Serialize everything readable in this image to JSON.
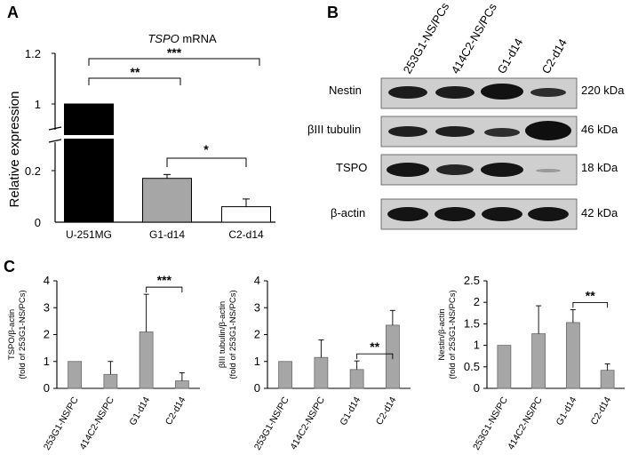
{
  "panels": {
    "A": "A",
    "B": "B",
    "C": "C"
  },
  "panel_a": {
    "title_gene": "TSPO",
    "title_rest": " mRNA",
    "ylabel": "Relative expression",
    "yticks_upper": [
      "1.2",
      "1"
    ],
    "yticks_lower": [
      "0.2",
      "0"
    ],
    "sig": [
      "**",
      "***",
      "*"
    ]
  },
  "panel_b": {
    "lanes": [
      "253G1-NS/PCs",
      "414C2-NS/PCs",
      "G1-d14",
      "C2-d14"
    ],
    "rows": [
      {
        "protein": "Nestin",
        "size": "220 kDa"
      },
      {
        "protein": "βIII tubulin",
        "size": "46 kDa"
      },
      {
        "protein": "TSPO",
        "size": "18 kDa"
      },
      {
        "protein": "β-actin",
        "size": "42 kDa"
      }
    ]
  },
  "chart_data": [
    {
      "type": "bar",
      "categories": [
        "U-251MG",
        "G1-d14",
        "C2-d14"
      ],
      "values": [
        1.0,
        0.17,
        0.06
      ],
      "errors": [
        0,
        0.015,
        0.03
      ],
      "colors": [
        "#000000",
        "#a6a6a6",
        "#ffffff"
      ],
      "title": "TSPO mRNA",
      "ylabel": "Relative expression",
      "y_axis_break": [
        0.25,
        0.85
      ],
      "ylim": [
        0,
        1.2
      ]
    },
    {
      "type": "bar",
      "categories": [
        "253G1-NS/PC",
        "414C2-NS/PC",
        "G1-d14",
        "C2-d14"
      ],
      "values": [
        1.0,
        0.52,
        2.1,
        0.28
      ],
      "errors": [
        0,
        0.48,
        1.4,
        0.3
      ],
      "ylabel_line1": "TSPO/β-actin",
      "ylabel_line2": "(fold of 253G1-NS/PCs)",
      "yticks": [
        "0",
        "1",
        "2",
        "3",
        "4"
      ],
      "ylim": [
        0,
        4
      ],
      "sig": "***"
    },
    {
      "type": "bar",
      "categories": [
        "253G1-NS/PC",
        "414C2-NS/PC",
        "G1-d14",
        "C2-d14"
      ],
      "values": [
        1.0,
        1.15,
        0.7,
        2.35
      ],
      "errors": [
        0,
        0.65,
        0.32,
        0.55
      ],
      "ylabel_line1": "βIII tubulin/β-actin",
      "ylabel_line2": "(fold of 253G1-NS/PCs)",
      "yticks": [
        "0",
        "1",
        "2",
        "3",
        "4"
      ],
      "ylim": [
        0,
        4
      ],
      "sig": "**"
    },
    {
      "type": "bar",
      "categories": [
        "253G1-NS/PC",
        "414C2-NS/PC",
        "G1-d14",
        "C2-d14"
      ],
      "values": [
        1.0,
        1.27,
        1.53,
        0.42
      ],
      "errors": [
        0,
        0.65,
        0.3,
        0.15
      ],
      "ylabel_line1": "Nestin/β-actin",
      "ylabel_line2": "(fold of 253G1-NS/PCs)",
      "yticks": [
        "0",
        "0.5",
        "1",
        "1.5",
        "2",
        "2.5"
      ],
      "ylim": [
        0,
        2.5
      ],
      "sig": "**"
    }
  ],
  "colors": {
    "bar_gray": "#a6a6a6",
    "black": "#000000",
    "blot_bg": "#cfcfcf",
    "band": "#1c1c1c"
  }
}
